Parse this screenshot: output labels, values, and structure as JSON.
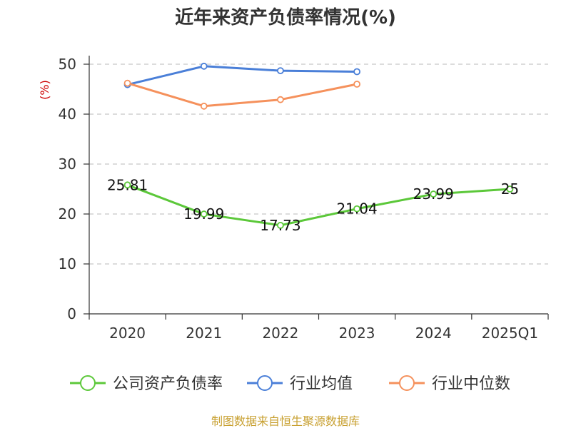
{
  "chart_data": {
    "type": "line",
    "title": "近年来资产负债率情况(%)",
    "ylabel": "(%)",
    "ylim": [
      0,
      50
    ],
    "yticks": [
      0,
      10,
      20,
      30,
      40,
      50
    ],
    "grid": true,
    "legend_placement": "bottom",
    "categories": [
      "2020",
      "2021",
      "2022",
      "2023",
      "2024",
      "2025Q1"
    ],
    "series": [
      {
        "name": "公司资产负债率",
        "color": "#5cc83a",
        "labeled": true,
        "values": [
          25.81,
          19.99,
          17.73,
          21.04,
          23.99,
          25
        ],
        "labels": [
          "25.81",
          "19.99",
          "17.73",
          "21.04",
          "23.99",
          "25"
        ]
      },
      {
        "name": "行业均值",
        "color": "#4a7fd8",
        "labeled": false,
        "values": [
          45.9,
          49.6,
          48.7,
          48.5,
          null,
          null
        ]
      },
      {
        "name": "行业中位数",
        "color": "#f5915c",
        "labeled": false,
        "values": [
          46.2,
          41.6,
          42.9,
          46.0,
          null,
          null
        ]
      }
    ]
  },
  "source": "制图数据来自恒生聚源数据库"
}
